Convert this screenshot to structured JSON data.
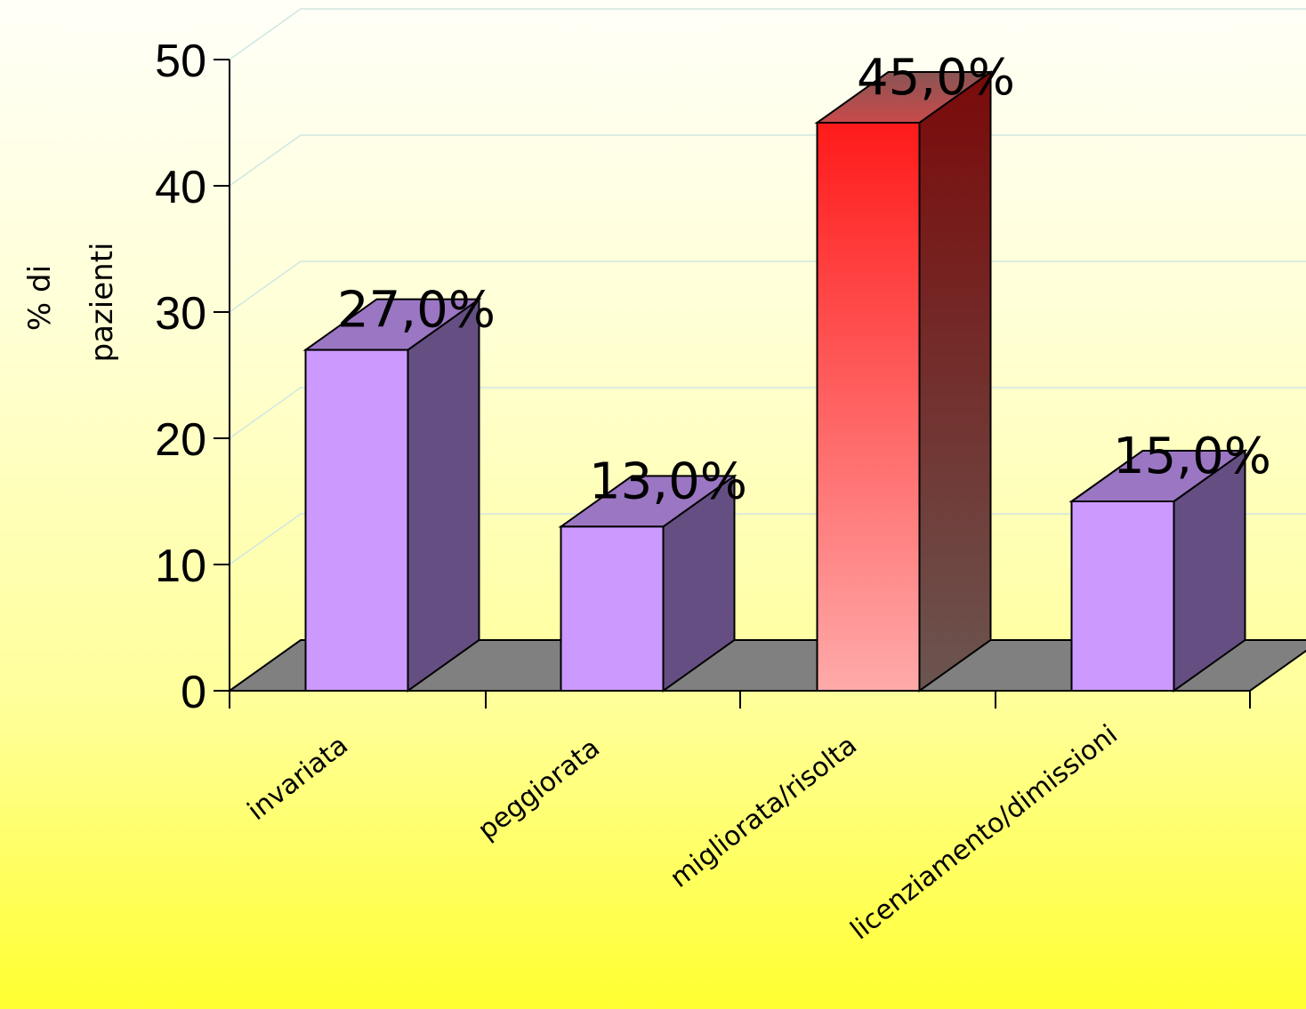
{
  "chart_data": {
    "type": "bar",
    "categories": [
      "invariata",
      "peggiorata",
      "migliorata/risolta",
      "licenziamento/dimissioni"
    ],
    "values": [
      27.0,
      13.0,
      45.0,
      15.0
    ],
    "data_labels": [
      "27,0%",
      "13,0%",
      "45,0%",
      "15,0%"
    ],
    "ylabel_lines": [
      "% di",
      "pazienti"
    ],
    "ylim": [
      0,
      50
    ],
    "yticks": [
      0,
      10,
      20,
      30,
      40,
      50
    ],
    "grid": true,
    "legend": "none",
    "three_d": true,
    "highlight_index": 2,
    "colors": {
      "bar_front": "#cc99ff",
      "bar_side": "#654f82",
      "bar_top": "#9b76c2",
      "highlight_top": "#ff1a1a",
      "highlight_bottom": "#ffaaaa",
      "highlight_side_top": "#7a0a0a",
      "highlight_side_bottom": "#6b5550",
      "floor": "#808080",
      "gridline": "#cfe7e2"
    }
  }
}
